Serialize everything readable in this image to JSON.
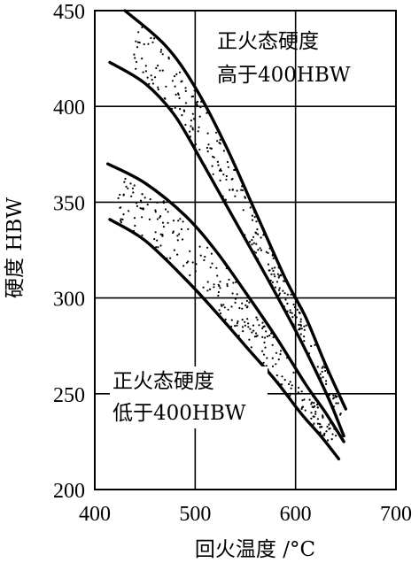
{
  "chart_data": {
    "type": "line",
    "title": "",
    "xlabel": "回火温度 /°C",
    "ylabel": "硬度 HBW",
    "xlim": [
      400,
      700
    ],
    "ylim": [
      200,
      450
    ],
    "xticks": [
      "400",
      "500",
      "600",
      "700"
    ],
    "yticks": [
      "200",
      "250",
      "300",
      "350",
      "400",
      "450"
    ],
    "grid": true,
    "bands": [
      {
        "label_lines": [
          "正火态硬度",
          "高于400HBW"
        ],
        "upper": {
          "x": [
            430,
            470,
            500,
            530,
            560,
            590,
            610,
            630,
            650
          ],
          "y": [
            450,
            432,
            410,
            380,
            345,
            310,
            290,
            265,
            242
          ]
        },
        "lower": {
          "x": [
            415,
            450,
            480,
            510,
            540,
            570,
            600,
            620,
            635,
            648
          ],
          "y": [
            423,
            412,
            395,
            368,
            340,
            312,
            283,
            262,
            245,
            228
          ]
        }
      },
      {
        "label_lines": [
          "正火态硬度",
          "低于400HBW"
        ],
        "upper": {
          "x": [
            413,
            450,
            490,
            520,
            550,
            580,
            610,
            630,
            648
          ],
          "y": [
            370,
            360,
            343,
            325,
            303,
            280,
            255,
            240,
            225
          ]
        },
        "lower": {
          "x": [
            415,
            450,
            490,
            520,
            550,
            580,
            605,
            625,
            643
          ],
          "y": [
            341,
            330,
            310,
            293,
            275,
            257,
            240,
            228,
            216
          ]
        }
      }
    ]
  }
}
